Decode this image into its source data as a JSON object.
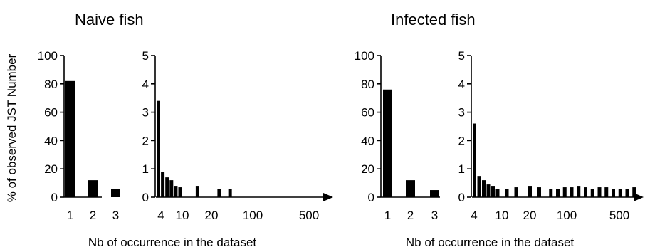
{
  "figure": {
    "ylabel": "% of observed JST Number",
    "xlabel": "Nb of occurrence in the dataset",
    "bar_color": "#000000"
  },
  "chart_data": [
    {
      "type": "bar",
      "title": "Naive fish",
      "panels": [
        {
          "categories": [
            "1",
            "2",
            "3"
          ],
          "values": [
            82,
            12,
            6
          ],
          "ylim": [
            0,
            100
          ],
          "yticks": [
            "0",
            "20",
            "40",
            "60",
            "80",
            "100"
          ]
        },
        {
          "values": [
            3.4,
            0.9,
            0.7,
            0.6,
            0.4,
            0.35,
            0.4,
            0.3,
            0.3
          ],
          "bar_positions": [
            0,
            1,
            2,
            3,
            4,
            5,
            9,
            14,
            16.5
          ],
          "ylim": [
            0,
            5
          ],
          "yticks": [
            "0",
            "1",
            "2",
            "3",
            "4",
            "5"
          ],
          "xticks": [
            "4",
            "10",
            "20",
            "100",
            "500"
          ]
        }
      ]
    },
    {
      "type": "bar",
      "title": "Infected fish",
      "panels": [
        {
          "categories": [
            "1",
            "2",
            "3"
          ],
          "values": [
            76,
            12,
            5
          ],
          "ylim": [
            0,
            100
          ],
          "yticks": [
            "0",
            "20",
            "40",
            "60",
            "80",
            "100"
          ]
        },
        {
          "values": [
            2.6,
            0.75,
            0.6,
            0.45,
            0.4,
            0.3,
            0.3,
            0.35,
            0.4,
            0.35,
            0.3,
            0.3,
            0.35,
            0.35,
            0.4,
            0.35,
            0.3,
            0.35,
            0.35,
            0.3,
            0.3,
            0.3,
            0.35
          ],
          "bar_positions": [
            0,
            1,
            2,
            3,
            4,
            5,
            7,
            9,
            12,
            14,
            16.5,
            18,
            19.5,
            21,
            22.5,
            24,
            25.5,
            27,
            28.5,
            30,
            31.5,
            33,
            34.5
          ],
          "ylim": [
            0,
            5
          ],
          "yticks": [
            "0",
            "1",
            "2",
            "3",
            "4",
            "5"
          ],
          "xticks": [
            "4",
            "10",
            "20",
            "100",
            "500"
          ]
        }
      ]
    }
  ]
}
